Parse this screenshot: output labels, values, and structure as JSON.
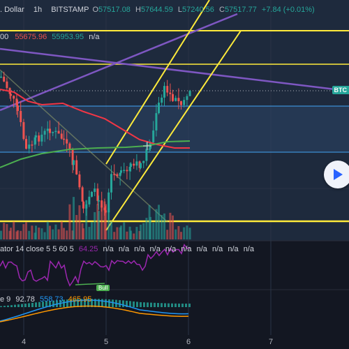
{
  "header": {
    "symbol_tail": ". Dollar",
    "interval": "1h",
    "exchange": "BITSTAMP",
    "o_label": "O",
    "o_value": "57517.08",
    "h_label": "H",
    "h_value": "57644.59",
    "l_label": "L",
    "l_value": "57240.56",
    "c_label": "C",
    "c_value": "57517.77",
    "change": "+7.84 (+0.01%)"
  },
  "ma_legend": {
    "prefix": "00",
    "ma1_value": "55675.96",
    "ma2_value": "55953.95",
    "ma3_value": "n/a"
  },
  "price_tag": "BTC",
  "indicator1": {
    "label": "ator 14 close 5 5 60 5",
    "value": "64.25",
    "nas": [
      "n/a",
      "n/a",
      "n/a",
      "n/a",
      "n/a",
      "n/a",
      "n/a",
      "n/a",
      "n/a",
      "n/a"
    ]
  },
  "bull_label": "Bull",
  "indicator2": {
    "label": "e 9",
    "v1": "92.78",
    "v2": "558.73",
    "v3": "465.95"
  },
  "x_axis": [
    "4",
    "5",
    "6",
    "7"
  ],
  "colors": {
    "background": "#131722",
    "up": "#26a69a",
    "down": "#ef5350",
    "channel": "#ffeb3b",
    "trendline": "#7e57c2",
    "hline_blue": "#2196f3",
    "ma_red": "#f23645",
    "ma_green": "#4caf50",
    "macd_blue": "#2196f3",
    "macd_orange": "#ff9800",
    "rsi": "#9c27b0"
  },
  "icons": {
    "play": "play-icon"
  }
}
